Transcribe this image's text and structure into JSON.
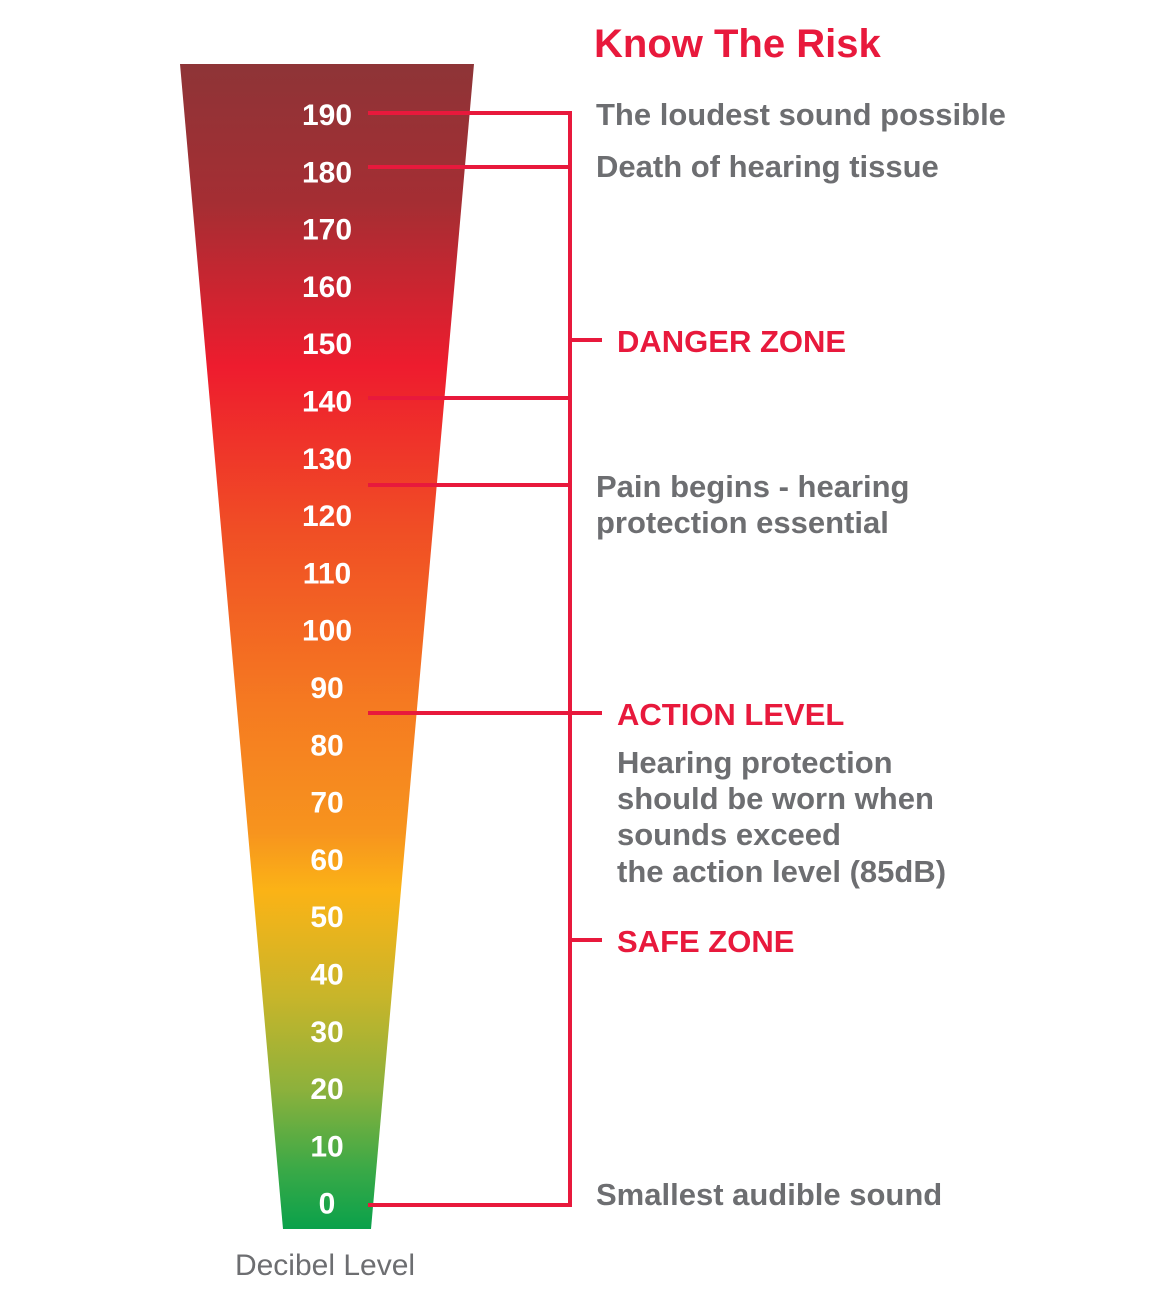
{
  "title": "Know The Risk",
  "axis_label": "Decibel Level",
  "colors": {
    "accent": "#e8193c",
    "text_gray": "#6d6e71",
    "gradient": [
      "#8e3437",
      "#a52e33",
      "#ee1c2e",
      "#f04e25",
      "#f57a21",
      "#f7941e",
      "#fbb316",
      "#c8b52a",
      "#8db13c",
      "#39a947",
      "#0aa14b"
    ]
  },
  "scale": {
    "ticks": [
      "190",
      "180",
      "170",
      "160",
      "150",
      "140",
      "130",
      "120",
      "110",
      "100",
      "90",
      "80",
      "70",
      "60",
      "50",
      "40",
      "30",
      "20",
      "10",
      "0"
    ]
  },
  "markers": [
    {
      "level": 190,
      "text": "The loudest sound possible"
    },
    {
      "level": 180,
      "text": "Death of hearing tissue"
    },
    {
      "level": 140,
      "text": ""
    },
    {
      "level": 125,
      "lines": [
        "Pain begins - hearing",
        "protection essential"
      ]
    },
    {
      "level": 85,
      "zone": "ACTION LEVEL",
      "lines": [
        "Hearing protection",
        "should be worn when",
        "sounds exceed",
        "the action level (85dB)"
      ]
    },
    {
      "level": 0,
      "text": "Smallest audible sound"
    }
  ],
  "zones": [
    {
      "name": "DANGER ZONE",
      "from": 140,
      "to": 190
    },
    {
      "name": "SAFE ZONE",
      "from": 0,
      "to": 140
    }
  ]
}
